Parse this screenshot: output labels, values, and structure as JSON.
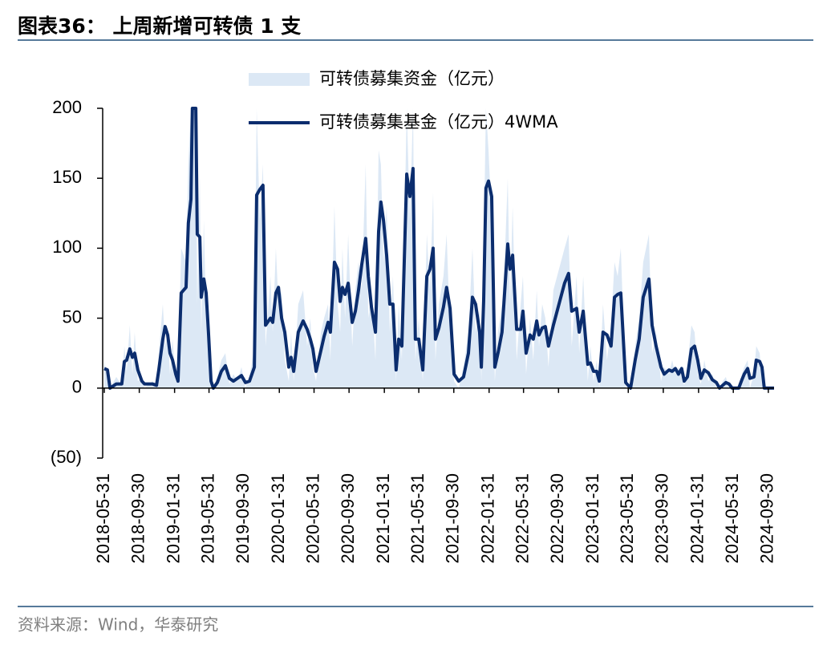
{
  "title": "图表36：  上周新增可转债 1 支",
  "source": "资料来源：Wind，华泰研究",
  "chart_data": {
    "type": "line",
    "x": [
      "2018-05-31",
      "2018-06-11",
      "2018-06-20",
      "2018-07-12",
      "2018-07-31",
      "2018-08-09",
      "2018-08-17",
      "2018-08-28",
      "2018-09-06",
      "2018-09-14",
      "2018-09-25",
      "2018-10-09",
      "2018-10-18",
      "2018-11-15",
      "2018-11-29",
      "2018-12-07",
      "2018-12-21",
      "2018-12-29",
      "2019-01-07",
      "2019-01-15",
      "2019-01-24",
      "2019-02-04",
      "2019-02-12",
      "2019-02-23",
      "2019-03-12",
      "2019-03-20",
      "2019-03-29",
      "2019-04-03",
      "2019-04-15",
      "2019-04-20",
      "2019-04-29",
      "2019-05-04",
      "2019-05-13",
      "2019-05-21",
      "2019-05-29",
      "2019-06-07",
      "2019-06-15",
      "2019-06-29",
      "2019-07-13",
      "2019-07-27",
      "2019-08-10",
      "2019-08-24",
      "2019-09-07",
      "2019-09-21",
      "2019-10-05",
      "2019-10-19",
      "2019-11-05",
      "2019-11-13",
      "2019-11-24",
      "2019-12-05",
      "2019-12-14",
      "2019-12-31",
      "2020-01-08",
      "2020-01-19",
      "2020-01-28",
      "2020-02-08",
      "2020-02-19",
      "2020-03-04",
      "2020-03-12",
      "2020-03-21",
      "2020-04-06",
      "2020-04-23",
      "2020-05-07",
      "2020-05-18",
      "2020-05-27",
      "2020-06-07",
      "2020-06-24",
      "2020-07-05",
      "2020-07-19",
      "2020-07-27",
      "2020-08-10",
      "2020-08-21",
      "2020-08-30",
      "2020-09-07",
      "2020-09-16",
      "2020-09-27",
      "2020-10-11",
      "2020-10-22",
      "2020-11-02",
      "2020-11-13",
      "2020-11-27",
      "2020-12-06",
      "2020-12-17",
      "2020-12-31",
      "2021-01-11",
      "2021-01-19",
      "2021-01-28",
      "2021-02-08",
      "2021-02-19",
      "2021-03-02",
      "2021-03-13",
      "2021-03-22",
      "2021-04-02",
      "2021-04-19",
      "2021-04-30",
      "2021-05-11",
      "2021-05-19",
      "2021-05-31",
      "2021-06-14",
      "2021-06-28",
      "2021-07-09",
      "2021-07-20",
      "2021-07-28",
      "2021-08-09",
      "2021-08-25",
      "2021-09-05",
      "2021-09-17",
      "2021-10-01",
      "2021-10-17",
      "2021-11-03",
      "2021-11-20",
      "2021-12-04",
      "2021-12-15",
      "2021-12-29",
      "2022-01-04",
      "2022-01-12",
      "2022-01-20",
      "2022-01-29",
      "2022-02-09",
      "2022-02-20",
      "2022-03-03",
      "2022-03-17",
      "2022-03-26",
      "2022-04-06",
      "2022-04-14",
      "2022-04-23",
      "2022-05-07",
      "2022-05-21",
      "2022-05-29",
      "2022-06-09",
      "2022-06-23",
      "2022-07-04",
      "2022-07-16",
      "2022-07-24",
      "2022-08-04",
      "2022-08-15",
      "2022-08-26",
      "2022-09-12",
      "2022-10-21",
      "2022-11-04",
      "2022-11-15",
      "2022-12-02",
      "2022-12-11",
      "2022-12-25",
      "2023-01-10",
      "2023-01-19",
      "2023-01-30",
      "2023-02-10",
      "2023-02-19",
      "2023-03-04",
      "2023-03-18",
      "2023-04-01",
      "2023-04-13",
      "2023-04-24",
      "2023-05-05",
      "2023-05-22",
      "2023-06-08",
      "2023-06-24",
      "2023-07-08",
      "2023-07-22",
      "2023-08-11",
      "2023-08-22",
      "2023-09-05",
      "2023-09-22",
      "2023-10-03",
      "2023-10-20",
      "2023-10-31",
      "2023-11-11",
      "2023-11-22",
      "2023-12-03",
      "2023-12-12",
      "2023-12-23",
      "2024-01-06",
      "2024-01-17",
      "2024-01-28",
      "2024-02-08",
      "2024-02-20",
      "2024-03-05",
      "2024-03-19",
      "2024-04-02",
      "2024-04-13",
      "2024-04-24",
      "2024-05-05",
      "2024-05-16",
      "2024-05-27",
      "2024-06-19",
      "2024-06-30",
      "2024-07-08",
      "2024-07-20",
      "2024-07-28",
      "2024-08-11",
      "2024-08-19",
      "2024-08-31",
      "2024-09-08",
      "2024-09-16",
      "2024-10-20"
    ],
    "series": [
      {
        "name": "可转债募集资金（亿元）",
        "kind": "area",
        "color": "#dce8f5",
        "values": [
          20,
          5,
          0,
          8,
          2,
          30,
          12,
          45,
          10,
          40,
          5,
          8,
          0,
          5,
          0,
          25,
          60,
          30,
          40,
          10,
          35,
          5,
          10,
          100,
          90,
          160,
          200,
          200,
          200,
          60,
          150,
          40,
          120,
          50,
          20,
          0,
          0,
          8,
          20,
          25,
          3,
          10,
          5,
          15,
          0,
          8,
          30,
          200,
          120,
          160,
          30,
          80,
          40,
          100,
          60,
          70,
          20,
          5,
          40,
          5,
          60,
          70,
          30,
          50,
          15,
          5,
          40,
          50,
          60,
          20,
          130,
          60,
          40,
          100,
          50,
          110,
          30,
          70,
          90,
          70,
          160,
          50,
          70,
          20,
          170,
          160,
          90,
          130,
          40,
          80,
          5,
          60,
          20,
          200,
          120,
          200,
          20,
          50,
          5,
          110,
          70,
          140,
          20,
          60,
          80,
          110,
          40,
          5,
          0,
          15,
          40,
          100,
          40,
          55,
          5,
          100,
          200,
          170,
          120,
          5,
          40,
          60,
          90,
          150,
          60,
          130,
          20,
          60,
          80,
          10,
          50,
          20,
          70,
          30,
          60,
          50,
          15,
          70,
          100,
          110,
          30,
          80,
          25,
          80,
          5,
          30,
          5,
          20,
          0,
          60,
          20,
          45,
          90,
          80,
          100,
          0,
          0,
          30,
          50,
          90,
          110,
          25,
          40,
          5,
          15,
          10,
          20,
          10,
          15,
          8,
          2,
          15,
          45,
          40,
          10,
          3,
          20,
          5,
          10,
          0,
          0,
          5,
          8,
          0,
          0,
          0,
          10,
          15,
          20,
          0,
          10,
          30,
          25,
          5,
          0,
          0
        ]
      },
      {
        "name": "可转债募集基金（亿元）4WMA",
        "kind": "line",
        "color": "#0b2d6e",
        "values": [
          14,
          13,
          0,
          3,
          3,
          19,
          20,
          28,
          22,
          25,
          13,
          5,
          3,
          3,
          2,
          13,
          35,
          44,
          38,
          25,
          20,
          10,
          5,
          68,
          72,
          118,
          135,
          200,
          200,
          110,
          108,
          65,
          78,
          68,
          40,
          5,
          0,
          4,
          12,
          16,
          7,
          5,
          7,
          9,
          4,
          5,
          15,
          138,
          142,
          145,
          45,
          50,
          47,
          68,
          72,
          50,
          40,
          15,
          22,
          12,
          40,
          48,
          42,
          35,
          28,
          12,
          27,
          37,
          47,
          40,
          90,
          85,
          62,
          72,
          67,
          75,
          47,
          55,
          70,
          88,
          107,
          80,
          58,
          40,
          112,
          133,
          120,
          95,
          60,
          60,
          13,
          35,
          30,
          153,
          137,
          157,
          35,
          35,
          13,
          80,
          85,
          100,
          35,
          43,
          58,
          72,
          57,
          10,
          5,
          8,
          25,
          65,
          60,
          40,
          15,
          62,
          143,
          148,
          137,
          15,
          25,
          40,
          68,
          103,
          85,
          95,
          42,
          42,
          55,
          25,
          38,
          35,
          48,
          38,
          43,
          44,
          30,
          45,
          75,
          82,
          55,
          57,
          40,
          55,
          17,
          18,
          12,
          12,
          5,
          40,
          38,
          30,
          65,
          67,
          68,
          4,
          0,
          20,
          35,
          65,
          78,
          45,
          30,
          15,
          10,
          13,
          12,
          14,
          10,
          14,
          5,
          8,
          28,
          30,
          20,
          7,
          13,
          11,
          6,
          4,
          0,
          2,
          4,
          3,
          0,
          0,
          6,
          10,
          14,
          7,
          8,
          20,
          19,
          15,
          0,
          0
        ]
      }
    ],
    "xlim": [
      "2018-05-31",
      "2024-10-20"
    ],
    "xticks": [
      "2018-05-31",
      "2018-09-30",
      "2019-01-31",
      "2019-05-31",
      "2019-09-30",
      "2020-01-31",
      "2020-05-31",
      "2020-09-30",
      "2021-01-31",
      "2021-05-31",
      "2021-09-30",
      "2022-01-31",
      "2022-05-31",
      "2022-09-30",
      "2023-01-31",
      "2023-05-31",
      "2023-09-30",
      "2024-01-31",
      "2024-05-31",
      "2024-09-30"
    ],
    "ylim": [
      -50,
      200
    ],
    "yticks": [
      {
        "value": -50,
        "label": "(50)"
      },
      0,
      50,
      100,
      150,
      200
    ],
    "legend": "top"
  }
}
